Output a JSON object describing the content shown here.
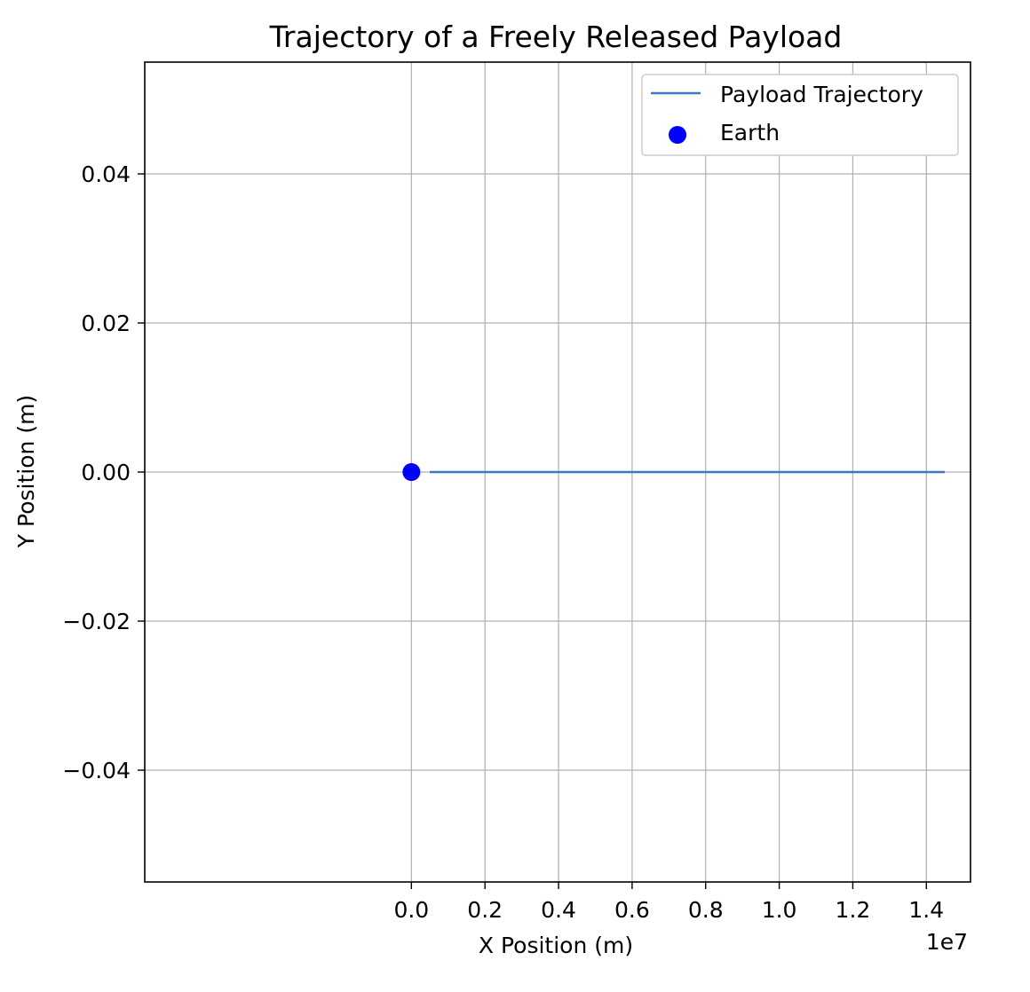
{
  "chart_data": {
    "type": "line",
    "title": "Trajectory of a Freely Released Payload",
    "xlabel": "X Position (m)",
    "ylabel": "Y Position (m)",
    "x_offset_label": "1e7",
    "xlim": [
      -7250000,
      15200000
    ],
    "ylim": [
      -0.055,
      0.055
    ],
    "x_ticks": [
      0,
      2000000,
      4000000,
      6000000,
      8000000,
      10000000,
      12000000,
      14000000
    ],
    "x_tick_labels": [
      "0.0",
      "0.2",
      "0.4",
      "0.6",
      "0.8",
      "1.0",
      "1.2",
      "1.4"
    ],
    "y_ticks": [
      -0.04,
      -0.02,
      0.0,
      0.02,
      0.04
    ],
    "y_tick_labels": [
      "−0.04",
      "−0.02",
      "0.00",
      "0.02",
      "0.04"
    ],
    "grid": true,
    "legend_position": "top-right",
    "series": [
      {
        "name": "Payload Trajectory",
        "kind": "line",
        "color": "#3a78c0",
        "x": [
          500000,
          14500000
        ],
        "y": [
          0,
          0
        ]
      },
      {
        "name": "Earth",
        "kind": "scatter",
        "color": "#0000ff",
        "x": [
          0
        ],
        "y": [
          0
        ]
      }
    ]
  }
}
